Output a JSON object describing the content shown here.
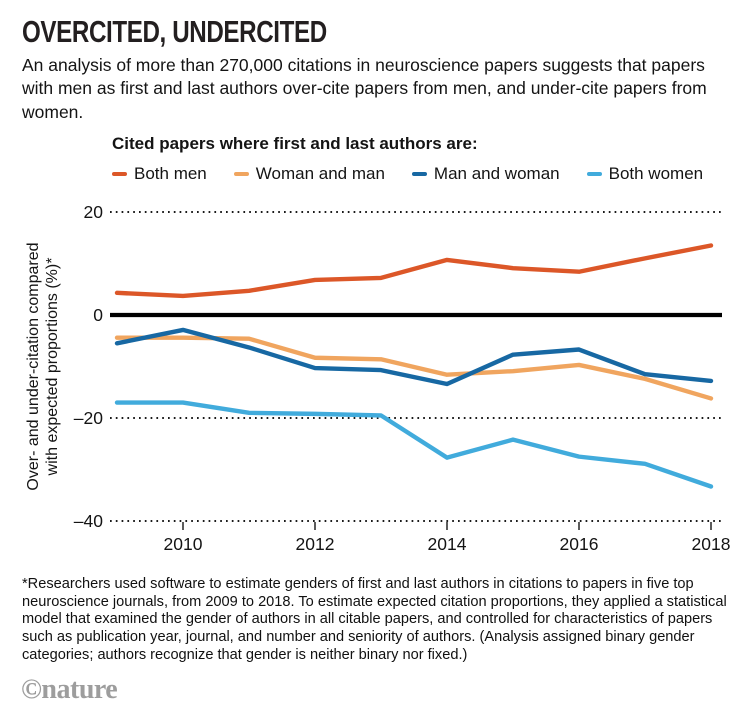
{
  "header": {
    "title": "OVERCITED, UNDERCITED",
    "subtitle": "An analysis of more than 270,000 citations in neuroscience papers suggests that papers with men as first and last authors over-cite papers from men, and under-cite papers from women."
  },
  "legend": {
    "heading": "Cited papers where first and last authors are:",
    "items": [
      {
        "label": "Both men",
        "color": "#dc5728"
      },
      {
        "label": "Woman and man",
        "color": "#f0a55f"
      },
      {
        "label": "Man and woman",
        "color": "#1768a3"
      },
      {
        "label": "Both women",
        "color": "#41abdc"
      }
    ]
  },
  "chart_data": {
    "type": "line",
    "x": [
      2009,
      2010,
      2011,
      2012,
      2013,
      2014,
      2015,
      2016,
      2017,
      2018
    ],
    "series": [
      {
        "name": "Both men",
        "color": "#dc5728",
        "values": [
          4.3,
          3.7,
          4.7,
          6.8,
          7.2,
          10.7,
          9.1,
          8.4,
          11.0,
          13.5
        ]
      },
      {
        "name": "Woman and man",
        "color": "#f0a55f",
        "values": [
          -4.4,
          -4.4,
          -4.6,
          -8.3,
          -8.6,
          -11.6,
          -10.9,
          -9.7,
          -12.4,
          -16.2
        ]
      },
      {
        "name": "Man and woman",
        "color": "#1768a3",
        "values": [
          -5.5,
          -2.9,
          -6.3,
          -10.3,
          -10.7,
          -13.4,
          -7.7,
          -6.7,
          -11.5,
          -12.8
        ]
      },
      {
        "name": "Both women",
        "color": "#41abdc",
        "values": [
          -17.0,
          -17.0,
          -19.0,
          -19.2,
          -19.5,
          -27.7,
          -24.2,
          -27.5,
          -28.9,
          -33.3
        ]
      }
    ],
    "ylabel": "Over- and under-citation compared with expected proportions (%)*",
    "ylabel_lines": [
      "Over- and under-citation compared",
      "with expected proportions (%)*"
    ],
    "ylim": [
      -40,
      20
    ],
    "xlim": [
      2009,
      2018
    ],
    "yticks": [
      {
        "value": 20,
        "label": "20"
      },
      {
        "value": 0,
        "label": "0"
      },
      {
        "value": -20,
        "label": "–20"
      },
      {
        "value": -40,
        "label": "–40"
      }
    ],
    "xticks": [
      {
        "value": 2010,
        "label": "2010"
      },
      {
        "value": 2012,
        "label": "2012"
      },
      {
        "value": 2014,
        "label": "2014"
      },
      {
        "value": 2016,
        "label": "2016"
      },
      {
        "value": 2018,
        "label": "2018"
      }
    ],
    "grid": "dotted horizontal",
    "zero_line": true,
    "legend_position": "top"
  },
  "footnote": "*Researchers used software to estimate genders of first and last authors in citations to papers in five top neuroscience journals, from 2009 to 2018. To estimate expected citation proportions, they applied a statistical model that examined the gender of authors in all citable papers, and controlled for characteristics of papers such as publication year, journal, and number and seniority of authors. (Analysis assigned binary gender categories; authors recognize that gender is neither binary nor fixed.)",
  "branding": {
    "logo": "©nature"
  }
}
